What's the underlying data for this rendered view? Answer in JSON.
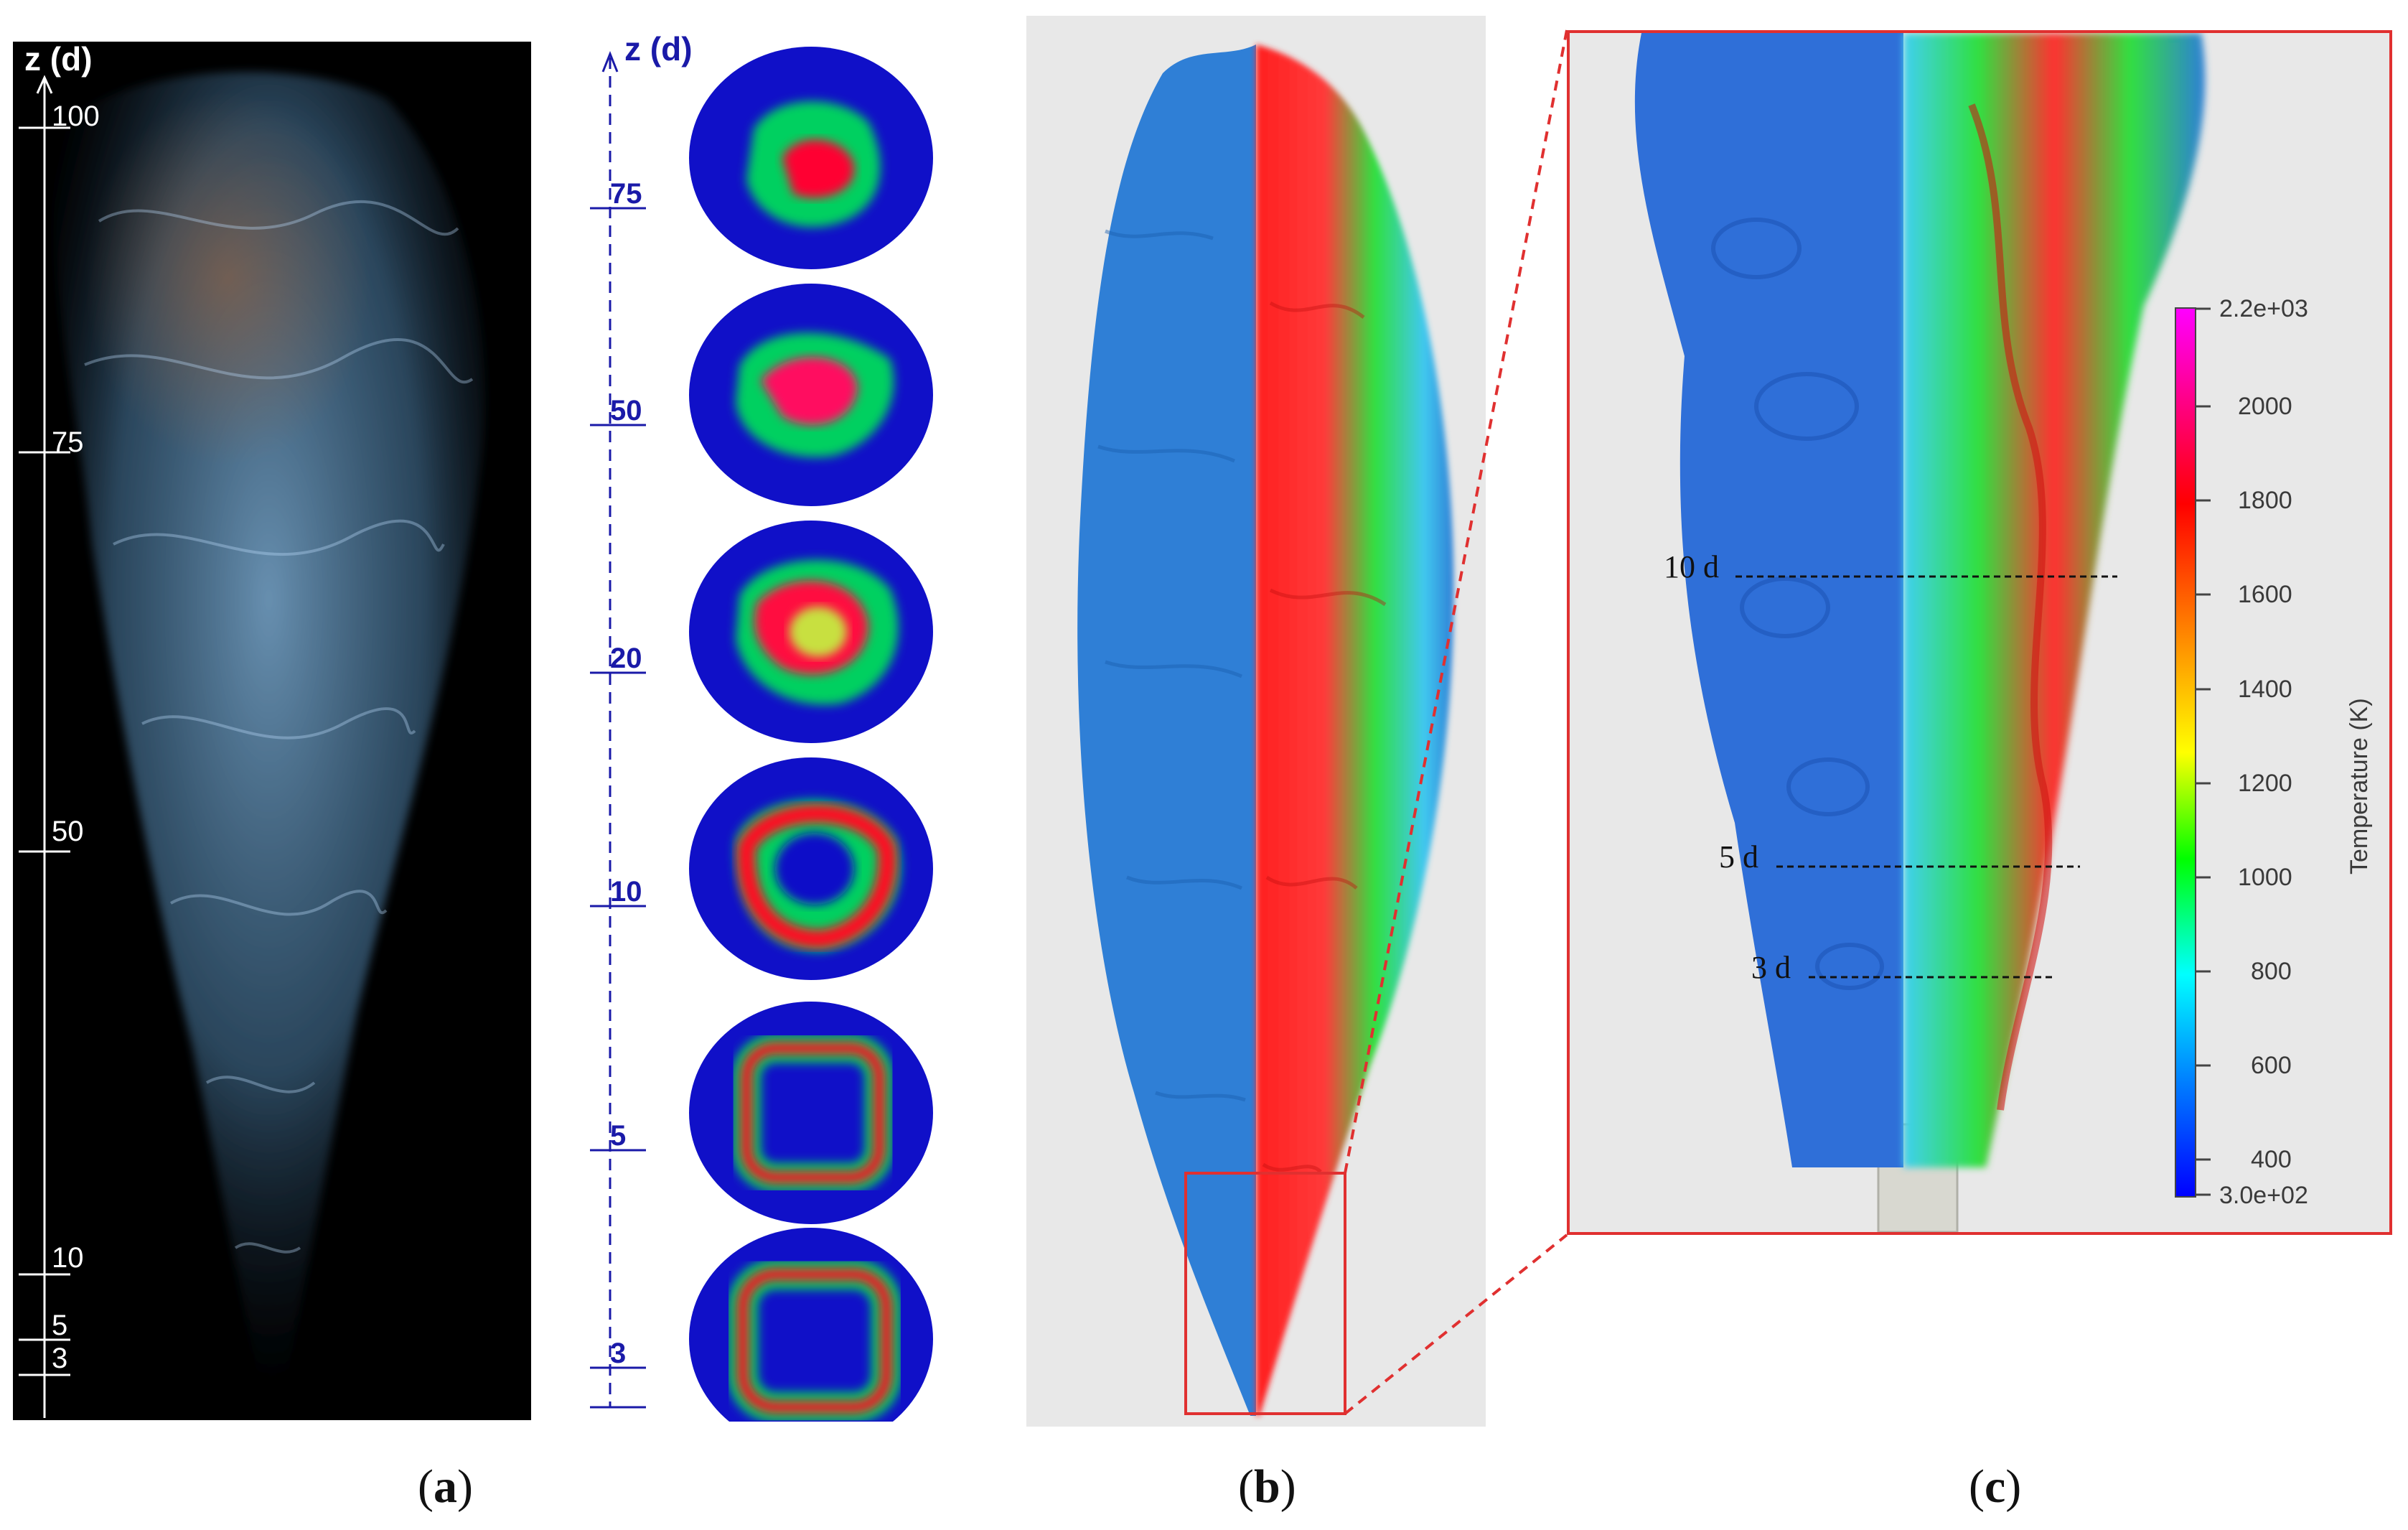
{
  "panel_a": {
    "axis_title": "z (d)",
    "ticks": [
      "100",
      "75",
      "50",
      "10",
      "5",
      "3"
    ]
  },
  "panel_slices": {
    "axis_title": "z (d)",
    "ticks": [
      "75",
      "50",
      "20",
      "10",
      "5",
      "3"
    ]
  },
  "panel_c": {
    "levels": [
      "10 d",
      "5 d",
      "3 d"
    ],
    "colorbar": {
      "title": "Temperature (K)",
      "max_label": "2.2e+03",
      "min_label": "3.0e+02",
      "ticks": [
        "2000",
        "1800",
        "1600",
        "1400",
        "1200",
        "1000",
        "800",
        "600",
        "400"
      ],
      "colors": [
        "#ff00ff",
        "#ff0000",
        "#ff8000",
        "#ffff00",
        "#00ff00",
        "#00ffff",
        "#0080ff",
        "#0000ff"
      ]
    }
  },
  "captions": {
    "a": "a",
    "b": "b",
    "c": "c"
  },
  "colors": {
    "slice_background": "#1010c8",
    "zoom_box": "#e03030",
    "plume_blue": "#2f7fd6",
    "panel_bg": "#e8e8e8"
  }
}
